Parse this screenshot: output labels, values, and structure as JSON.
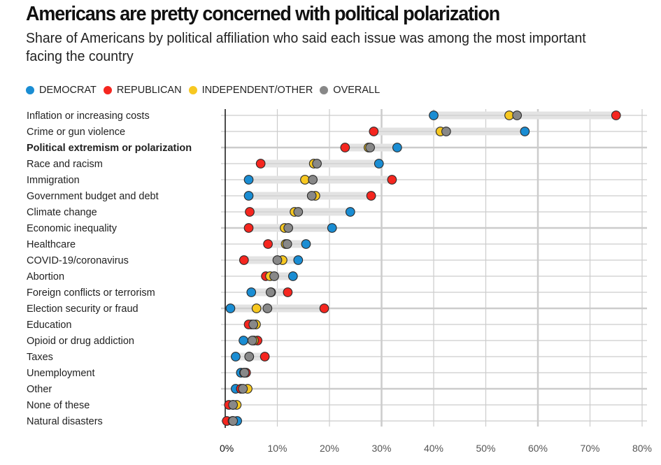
{
  "chart_data": {
    "type": "scatter",
    "subtype": "dot-plot",
    "title": "Americans are pretty concerned with political polarization",
    "subtitle": "Share of Americans by political affiliation who said each issue was among the most important facing the country",
    "xlabel": "",
    "ylabel": "",
    "xlim": [
      0,
      80
    ],
    "x_ticks": [
      0,
      10,
      20,
      30,
      40,
      50,
      60,
      70,
      80
    ],
    "x_tick_labels": [
      "0%",
      "10%",
      "20%",
      "30%",
      "40%",
      "50%",
      "60%",
      "70%",
      "80%"
    ],
    "grid": true,
    "legend_position": "top-left",
    "highlighted_category": "Political extremism or polarization",
    "categories": [
      "Inflation or increasing costs",
      "Crime or gun violence",
      "Political extremism or polarization",
      "Race and racism",
      "Immigration",
      "Government budget and debt",
      "Climate change",
      "Economic inequality",
      "Healthcare",
      "COVID-19/coronavirus",
      "Abortion",
      "Foreign conflicts or terrorism",
      "Election security or fraud",
      "Education",
      "Opioid or drug addiction",
      "Taxes",
      "Unemployment",
      "Other",
      "None of these",
      "Natural disasters"
    ],
    "series": [
      {
        "name": "DEMOCRAT",
        "color": "#1a8dd3",
        "values": [
          40,
          57.5,
          33,
          29.5,
          4.5,
          4.5,
          24,
          20.5,
          15.5,
          14,
          13,
          5,
          1,
          5,
          3.5,
          2,
          3,
          2,
          1.5,
          2.3
        ]
      },
      {
        "name": "REPUBLICAN",
        "color": "#f5261f",
        "values": [
          75,
          28.5,
          23,
          6.8,
          32,
          28,
          4.7,
          4.5,
          8.2,
          3.6,
          7.8,
          12,
          19,
          4.5,
          6.2,
          7.6,
          4,
          3,
          0.7,
          0.3
        ]
      },
      {
        "name": "INDEPENDENT/OTHER",
        "color": "#f7c821",
        "values": [
          54.5,
          41.3,
          27.5,
          17,
          15.3,
          17.3,
          13.3,
          11.4,
          11.6,
          11,
          8.6,
          8.8,
          6,
          5.9,
          5.5,
          4.6,
          3.6,
          4.3,
          2.2,
          1.4
        ]
      },
      {
        "name": "OVERALL",
        "color": "#888888",
        "values": [
          56,
          42.4,
          27.8,
          17.6,
          16.8,
          16.6,
          14,
          12.1,
          11.9,
          10,
          9.4,
          8.7,
          8.1,
          5.4,
          5.2,
          4.6,
          3.7,
          3.4,
          1.5,
          1.5
        ]
      }
    ]
  }
}
